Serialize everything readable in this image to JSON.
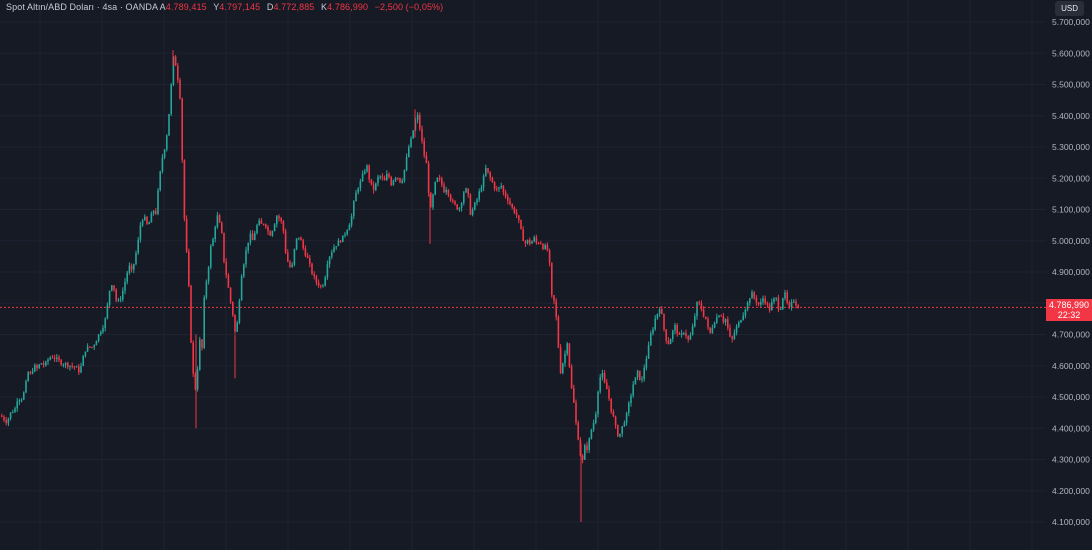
{
  "legend": {
    "title": "Spot Altın/ABD Doları · 4sa · OANDA",
    "open_label": "A",
    "open": "4.789,415",
    "high_label": "Y",
    "high": "4.797,145",
    "low_label": "D",
    "low": "4.772,885",
    "close_label": "K",
    "close": "4.786,990",
    "change": "−2,500 (−0,05%)"
  },
  "currency": "USD",
  "last_price": {
    "value": 4786.99,
    "label": "4.786,990",
    "countdown": "22:32"
  },
  "colors": {
    "up": "#26a69a",
    "down": "#f23645",
    "background": "#161a25",
    "grid": "#1f2331"
  },
  "chart_data": {
    "type": "candlestick",
    "ylim": [
      4050,
      5750
    ],
    "y_ticks": [
      "4.100,000",
      "4.200,000",
      "4.300,000",
      "4.400,000",
      "4.500,000",
      "4.600,000",
      "4.700,000",
      "4.800,000",
      "4.900,000",
      "5.000,000",
      "5.100,000",
      "5.200,000",
      "5.300,000",
      "5.400,000",
      "5.500,000",
      "5.600,000",
      "5.700,000"
    ],
    "y_tick_values": [
      4100,
      4200,
      4300,
      4400,
      4500,
      4600,
      4700,
      4800,
      4900,
      5000,
      5100,
      5200,
      5300,
      5400,
      5500,
      5600,
      5700
    ],
    "close_path": [
      [
        0,
        4440
      ],
      [
        3,
        4430
      ],
      [
        6,
        4420
      ],
      [
        10,
        4450
      ],
      [
        14,
        4460
      ],
      [
        17,
        4500
      ],
      [
        20,
        4490
      ],
      [
        24,
        4520
      ],
      [
        27,
        4580
      ],
      [
        30,
        4570
      ],
      [
        33,
        4600
      ],
      [
        36,
        4590
      ],
      [
        40,
        4610
      ],
      [
        44,
        4600
      ],
      [
        48,
        4625
      ],
      [
        52,
        4630
      ],
      [
        56,
        4620
      ],
      [
        60,
        4610
      ],
      [
        65,
        4605
      ],
      [
        70,
        4600
      ],
      [
        75,
        4595
      ],
      [
        79,
        4580
      ],
      [
        84,
        4650
      ],
      [
        88,
        4660
      ],
      [
        92,
        4660
      ],
      [
        95,
        4680
      ],
      [
        98,
        4700
      ],
      [
        101,
        4720
      ],
      [
        104,
        4740
      ],
      [
        107,
        4800
      ],
      [
        110,
        4870
      ],
      [
        113,
        4850
      ],
      [
        116,
        4800
      ],
      [
        119,
        4810
      ],
      [
        122,
        4840
      ],
      [
        125,
        4880
      ],
      [
        128,
        4920
      ],
      [
        131,
        4900
      ],
      [
        134,
        4940
      ],
      [
        137,
        4990
      ],
      [
        140,
        5060
      ],
      [
        143,
        5080
      ],
      [
        146,
        5050
      ],
      [
        149,
        5060
      ],
      [
        152,
        5100
      ],
      [
        155,
        5090
      ],
      [
        158,
        5180
      ],
      [
        161,
        5260
      ],
      [
        164,
        5300
      ],
      [
        167,
        5360
      ],
      [
        170,
        5480
      ],
      [
        173,
        5600
      ],
      [
        175,
        5560
      ],
      [
        177,
        5520
      ],
      [
        179,
        5480
      ],
      [
        181,
        5300
      ],
      [
        183,
        5100
      ],
      [
        185,
        5000
      ],
      [
        187,
        4900
      ],
      [
        189,
        4800
      ],
      [
        191,
        4600
      ],
      [
        193,
        4560
      ],
      [
        195,
        4520
      ],
      [
        197,
        4600
      ],
      [
        199,
        4680
      ],
      [
        201,
        4640
      ],
      [
        203,
        4800
      ],
      [
        205,
        4860
      ],
      [
        207,
        4900
      ],
      [
        209,
        4950
      ],
      [
        211,
        5010
      ],
      [
        213,
        5000
      ],
      [
        215,
        5070
      ],
      [
        217,
        5080
      ],
      [
        219,
        5050
      ],
      [
        221,
        5020
      ],
      [
        223,
        4940
      ],
      [
        225,
        4900
      ],
      [
        227,
        4860
      ],
      [
        229,
        4820
      ],
      [
        231,
        4780
      ],
      [
        233,
        4750
      ],
      [
        235,
        4680
      ],
      [
        237,
        4760
      ],
      [
        239,
        4830
      ],
      [
        241,
        4900
      ],
      [
        243,
        4930
      ],
      [
        246,
        4980
      ],
      [
        249,
        5020
      ],
      [
        252,
        5000
      ],
      [
        255,
        5040
      ],
      [
        258,
        5060
      ],
      [
        261,
        5050
      ],
      [
        264,
        5060
      ],
      [
        267,
        5030
      ],
      [
        270,
        5020
      ],
      [
        273,
        5050
      ],
      [
        276,
        5080
      ],
      [
        279,
        5070
      ],
      [
        282,
        5050
      ],
      [
        285,
        4960
      ],
      [
        288,
        4920
      ],
      [
        291,
        4910
      ],
      [
        294,
        4980
      ],
      [
        297,
        5020
      ],
      [
        300,
        5000
      ],
      [
        303,
        4970
      ],
      [
        306,
        4950
      ],
      [
        309,
        4920
      ],
      [
        312,
        4890
      ],
      [
        315,
        4870
      ],
      [
        318,
        4860
      ],
      [
        321,
        4850
      ],
      [
        324,
        4880
      ],
      [
        327,
        4940
      ],
      [
        330,
        4960
      ],
      [
        333,
        4980
      ],
      [
        336,
        4990
      ],
      [
        339,
        5000
      ],
      [
        342,
        5010
      ],
      [
        345,
        5030
      ],
      [
        348,
        5050
      ],
      [
        351,
        5080
      ],
      [
        354,
        5140
      ],
      [
        357,
        5170
      ],
      [
        360,
        5190
      ],
      [
        363,
        5220
      ],
      [
        366,
        5240
      ],
      [
        369,
        5190
      ],
      [
        372,
        5160
      ],
      [
        375,
        5180
      ],
      [
        378,
        5210
      ],
      [
        381,
        5200
      ],
      [
        384,
        5190
      ],
      [
        387,
        5220
      ],
      [
        390,
        5180
      ],
      [
        393,
        5200
      ],
      [
        396,
        5210
      ],
      [
        399,
        5190
      ],
      [
        402,
        5200
      ],
      [
        405,
        5250
      ],
      [
        408,
        5300
      ],
      [
        411,
        5330
      ],
      [
        414,
        5380
      ],
      [
        417,
        5400
      ],
      [
        420,
        5340
      ],
      [
        423,
        5280
      ],
      [
        426,
        5240
      ],
      [
        428,
        5150
      ],
      [
        430,
        5100
      ],
      [
        432,
        5140
      ],
      [
        434,
        5180
      ],
      [
        437,
        5200
      ],
      [
        440,
        5190
      ],
      [
        443,
        5160
      ],
      [
        446,
        5170
      ],
      [
        449,
        5140
      ],
      [
        452,
        5120
      ],
      [
        455,
        5110
      ],
      [
        458,
        5100
      ],
      [
        461,
        5130
      ],
      [
        464,
        5170
      ],
      [
        467,
        5150
      ],
      [
        470,
        5080
      ],
      [
        473,
        5110
      ],
      [
        476,
        5130
      ],
      [
        479,
        5160
      ],
      [
        482,
        5190
      ],
      [
        485,
        5230
      ],
      [
        488,
        5210
      ],
      [
        491,
        5190
      ],
      [
        494,
        5170
      ],
      [
        497,
        5160
      ],
      [
        500,
        5180
      ],
      [
        503,
        5150
      ],
      [
        506,
        5140
      ],
      [
        509,
        5120
      ],
      [
        512,
        5100
      ],
      [
        515,
        5090
      ],
      [
        518,
        5060
      ],
      [
        521,
        5020
      ],
      [
        524,
        4990
      ],
      [
        527,
        5000
      ],
      [
        530,
        4990
      ],
      [
        533,
        5010
      ],
      [
        536,
        4990
      ],
      [
        539,
        5000
      ],
      [
        542,
        4980
      ],
      [
        545,
        4980
      ],
      [
        548,
        4960
      ],
      [
        551,
        4820
      ],
      [
        554,
        4800
      ],
      [
        557,
        4700
      ],
      [
        559,
        4570
      ],
      [
        561,
        4600
      ],
      [
        563,
        4620
      ],
      [
        565,
        4650
      ],
      [
        567,
        4690
      ],
      [
        569,
        4580
      ],
      [
        571,
        4520
      ],
      [
        573,
        4480
      ],
      [
        575,
        4420
      ],
      [
        577,
        4380
      ],
      [
        579,
        4330
      ],
      [
        581,
        4280
      ],
      [
        583,
        4320
      ],
      [
        585,
        4360
      ],
      [
        587,
        4320
      ],
      [
        589,
        4380
      ],
      [
        591,
        4400
      ],
      [
        593,
        4420
      ],
      [
        595,
        4450
      ],
      [
        597,
        4520
      ],
      [
        599,
        4560
      ],
      [
        601,
        4580
      ],
      [
        603,
        4550
      ],
      [
        605,
        4530
      ],
      [
        607,
        4520
      ],
      [
        609,
        4480
      ],
      [
        611,
        4450
      ],
      [
        613,
        4430
      ],
      [
        615,
        4400
      ],
      [
        617,
        4380
      ],
      [
        619,
        4380
      ],
      [
        621,
        4400
      ],
      [
        623,
        4420
      ],
      [
        625,
        4430
      ],
      [
        627,
        4460
      ],
      [
        629,
        4490
      ],
      [
        631,
        4520
      ],
      [
        633,
        4550
      ],
      [
        635,
        4560
      ],
      [
        637,
        4580
      ],
      [
        639,
        4560
      ],
      [
        641,
        4550
      ],
      [
        643,
        4590
      ],
      [
        645,
        4620
      ],
      [
        647,
        4640
      ],
      [
        649,
        4690
      ],
      [
        651,
        4710
      ],
      [
        653,
        4730
      ],
      [
        655,
        4760
      ],
      [
        657,
        4770
      ],
      [
        659,
        4790
      ],
      [
        661,
        4760
      ],
      [
        663,
        4720
      ],
      [
        665,
        4690
      ],
      [
        667,
        4670
      ],
      [
        669,
        4680
      ],
      [
        671,
        4700
      ],
      [
        673,
        4720
      ],
      [
        675,
        4730
      ],
      [
        677,
        4700
      ],
      [
        679,
        4690
      ],
      [
        681,
        4700
      ],
      [
        683,
        4710
      ],
      [
        685,
        4700
      ],
      [
        687,
        4680
      ],
      [
        689,
        4690
      ],
      [
        691,
        4710
      ],
      [
        693,
        4740
      ],
      [
        695,
        4780
      ],
      [
        697,
        4810
      ],
      [
        699,
        4790
      ],
      [
        701,
        4780
      ],
      [
        703,
        4760
      ],
      [
        705,
        4750
      ],
      [
        707,
        4720
      ],
      [
        709,
        4700
      ],
      [
        711,
        4720
      ],
      [
        713,
        4740
      ],
      [
        715,
        4750
      ],
      [
        717,
        4760
      ],
      [
        719,
        4770
      ],
      [
        721,
        4760
      ],
      [
        723,
        4740
      ],
      [
        725,
        4750
      ],
      [
        727,
        4720
      ],
      [
        729,
        4690
      ],
      [
        731,
        4680
      ],
      [
        733,
        4700
      ],
      [
        735,
        4720
      ],
      [
        737,
        4730
      ],
      [
        739,
        4740
      ],
      [
        741,
        4760
      ],
      [
        743,
        4770
      ],
      [
        745,
        4790
      ],
      [
        747,
        4800
      ],
      [
        749,
        4820
      ],
      [
        751,
        4830
      ],
      [
        753,
        4820
      ],
      [
        755,
        4810
      ],
      [
        757,
        4800
      ],
      [
        759,
        4790
      ],
      [
        761,
        4810
      ],
      [
        763,
        4820
      ],
      [
        765,
        4800
      ],
      [
        767,
        4790
      ],
      [
        769,
        4780
      ],
      [
        771,
        4800
      ],
      [
        773,
        4810
      ],
      [
        775,
        4820
      ],
      [
        777,
        4790
      ],
      [
        779,
        4780
      ],
      [
        781,
        4800
      ],
      [
        783,
        4840
      ],
      [
        785,
        4820
      ],
      [
        787,
        4790
      ],
      [
        789,
        4780
      ],
      [
        791,
        4800
      ],
      [
        793,
        4810
      ],
      [
        795,
        4800
      ],
      [
        797,
        4790
      ],
      [
        799,
        4787
      ]
    ]
  }
}
